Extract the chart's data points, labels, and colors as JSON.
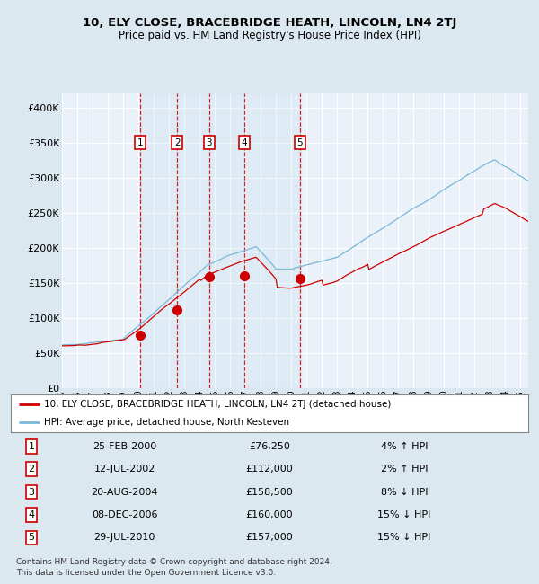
{
  "title": "10, ELY CLOSE, BRACEBRIDGE HEATH, LINCOLN, LN4 2TJ",
  "subtitle": "Price paid vs. HM Land Registry's House Price Index (HPI)",
  "legend_line1": "10, ELY CLOSE, BRACEBRIDGE HEATH, LINCOLN, LN4 2TJ (detached house)",
  "legend_line2": "HPI: Average price, detached house, North Kesteven",
  "footer": "Contains HM Land Registry data © Crown copyright and database right 2024.\nThis data is licensed under the Open Government Licence v3.0.",
  "sale_points": [
    {
      "label": 1,
      "date_str": "25-FEB-2000",
      "price": 76250,
      "x": 2000.12,
      "pct": "4% ↑ HPI"
    },
    {
      "label": 2,
      "date_str": "12-JUL-2002",
      "price": 112000,
      "x": 2002.53,
      "pct": "2% ↑ HPI"
    },
    {
      "label": 3,
      "date_str": "20-AUG-2004",
      "price": 158500,
      "x": 2004.63,
      "pct": "8% ↓ HPI"
    },
    {
      "label": 4,
      "date_str": "08-DEC-2006",
      "price": 160000,
      "x": 2006.93,
      "pct": "15% ↓ HPI"
    },
    {
      "label": 5,
      "date_str": "29-JUL-2010",
      "price": 157000,
      "x": 2010.57,
      "pct": "15% ↓ HPI"
    }
  ],
  "xlim": [
    1995.0,
    2025.5
  ],
  "ylim": [
    0,
    420000
  ],
  "yticks": [
    0,
    50000,
    100000,
    150000,
    200000,
    250000,
    300000,
    350000,
    400000
  ],
  "ytick_labels": [
    "£0",
    "£50K",
    "£100K",
    "£150K",
    "£200K",
    "£250K",
    "£300K",
    "£350K",
    "£400K"
  ],
  "background_color": "#dce8f0",
  "plot_bg_color": "#eaf1f8",
  "grid_color": "#ffffff",
  "hpi_color": "#7ab8d8",
  "price_color": "#cc0000",
  "sale_marker_color": "#cc0000",
  "dashed_line_color": "#cc0000",
  "box_color": "#cc0000",
  "legend_bg": "#ffffff",
  "table_bg": "#ffffff"
}
